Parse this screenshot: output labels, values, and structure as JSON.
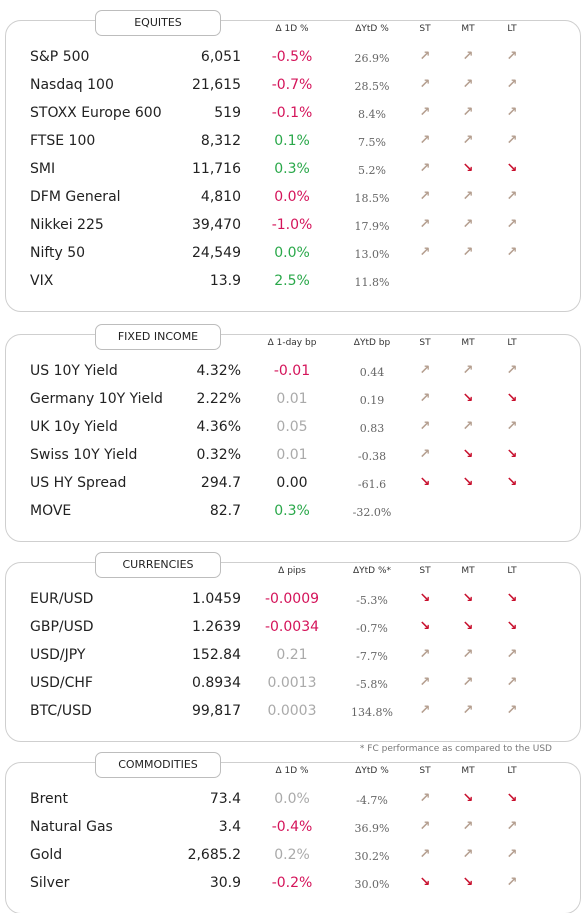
{
  "note": "* FC performance as compared to the USD",
  "sections": [
    {
      "title": "EQUITES",
      "headers": [
        "Δ 1D %",
        "ΔYtD %",
        "ST",
        "MT",
        "LT"
      ],
      "rows": [
        {
          "name": "S&P 500",
          "value": "6,051",
          "change": "-0.5%",
          "change_color": "#d4145a",
          "ytd": "26.9%",
          "st": "↗",
          "mt": "↗",
          "lt": "↗"
        },
        {
          "name": "Nasdaq 100",
          "value": "21,615",
          "change": "-0.7%",
          "change_color": "#d4145a",
          "ytd": "28.5%",
          "st": "↗",
          "mt": "↗",
          "lt": "↗"
        },
        {
          "name": "STOXX Europe 600",
          "value": "519",
          "change": "-0.1%",
          "change_color": "#d4145a",
          "ytd": "8.4%",
          "st": "↗",
          "mt": "↗",
          "lt": "↗"
        },
        {
          "name": "FTSE 100",
          "value": "8,312",
          "change": "0.1%",
          "change_color": "#2aa84a",
          "ytd": "7.5%",
          "st": "↗",
          "mt": "↗",
          "lt": "↗"
        },
        {
          "name": "SMI",
          "value": "11,716",
          "change": "0.3%",
          "change_color": "#2aa84a",
          "ytd": "5.2%",
          "st": "↗",
          "mt": "↘",
          "lt": "↘"
        },
        {
          "name": "DFM General",
          "value": "4,810",
          "change": "0.0%",
          "change_color": "#d4145a",
          "ytd": "18.5%",
          "st": "↗",
          "mt": "↗",
          "lt": "↗"
        },
        {
          "name": "Nikkei 225",
          "value": "39,470",
          "change": "-1.0%",
          "change_color": "#d4145a",
          "ytd": "17.9%",
          "st": "↗",
          "mt": "↗",
          "lt": "↗"
        },
        {
          "name": "Nifty  50",
          "value": "24,549",
          "change": "0.0%",
          "change_color": "#2aa84a",
          "ytd": "13.0%",
          "st": "↗",
          "mt": "↗",
          "lt": "↗"
        },
        {
          "name": "VIX",
          "value": "13.9",
          "change": "2.5%",
          "change_color": "#2aa84a",
          "ytd": "11.8%"
        }
      ]
    },
    {
      "title": "FIXED INCOME",
      "headers": [
        "Δ 1-day bp",
        "ΔYtD bp",
        "ST",
        "MT",
        "LT"
      ],
      "rows": [
        {
          "name": "US 10Y Yield",
          "value": "4.32%",
          "change": "-0.01",
          "change_color": "#d4145a",
          "ytd": "0.44",
          "st": "↗",
          "mt": "↗",
          "lt": "↗"
        },
        {
          "name": "Germany 10Y Yield",
          "value": "2.22%",
          "change": "0.01",
          "change_color": "#aaaaaa",
          "ytd": "0.19",
          "st": "↗",
          "mt": "↘",
          "lt": "↘"
        },
        {
          "name": "UK 10y Yield",
          "value": "4.36%",
          "change": "0.05",
          "change_color": "#aaaaaa",
          "ytd": "0.83",
          "st": "↗",
          "mt": "↗",
          "lt": "↗"
        },
        {
          "name": "Swiss 10Y Yield",
          "value": "0.32%",
          "change": "0.01",
          "change_color": "#aaaaaa",
          "ytd": "-0.38",
          "st": "↗",
          "mt": "↘",
          "lt": "↘"
        },
        {
          "name": "US HY Spread",
          "value": "294.7",
          "change": "0.00",
          "change_color": "#222222",
          "ytd": "-61.6",
          "st": "↘",
          "mt": "↘",
          "lt": "↘"
        },
        {
          "name": "MOVE",
          "value": "82.7",
          "change": "0.3%",
          "change_color": "#2aa84a",
          "ytd": "-32.0%"
        }
      ]
    },
    {
      "title": "CURRENCIES",
      "headers": [
        "Δ pips",
        "ΔYtD %*",
        "ST",
        "MT",
        "LT"
      ],
      "rows": [
        {
          "name": "EUR/USD",
          "value": "1.0459",
          "change": "-0.0009",
          "change_color": "#d4145a",
          "ytd": "-5.3%",
          "st": "↘",
          "mt": "↘",
          "lt": "↘"
        },
        {
          "name": "GBP/USD",
          "value": "1.2639",
          "change": "-0.0034",
          "change_color": "#d4145a",
          "ytd": "-0.7%",
          "st": "↘",
          "mt": "↘",
          "lt": "↘"
        },
        {
          "name": "USD/JPY",
          "value": "152.84",
          "change": "0.21",
          "change_color": "#aaaaaa",
          "ytd": "-7.7%",
          "st": "↗",
          "mt": "↗",
          "lt": "↗"
        },
        {
          "name": "USD/CHF",
          "value": "0.8934",
          "change": "0.0013",
          "change_color": "#aaaaaa",
          "ytd": "-5.8%",
          "st": "↗",
          "mt": "↗",
          "lt": "↗"
        },
        {
          "name": "BTC/USD",
          "value": "99,817",
          "change": "0.0003",
          "change_color": "#aaaaaa",
          "ytd": "134.8%",
          "st": "↗",
          "mt": "↗",
          "lt": "↗"
        }
      ]
    },
    {
      "title": "COMMODITIES",
      "headers": [
        "Δ 1D %",
        "ΔYtD %",
        "ST",
        "MT",
        "LT"
      ],
      "rows": [
        {
          "name": "Brent",
          "value": "73.4",
          "change": "0.0%",
          "change_color": "#aaaaaa",
          "ytd": "-4.7%",
          "st": "↗",
          "mt": "↘",
          "lt": "↘"
        },
        {
          "name": "Natural Gas",
          "value": "3.4",
          "change": "-0.4%",
          "change_color": "#d4145a",
          "ytd": "36.9%",
          "st": "↗",
          "mt": "↗",
          "lt": "↗"
        },
        {
          "name": "Gold",
          "value": "2,685.2",
          "change": "0.2%",
          "change_color": "#aaaaaa",
          "ytd": "30.2%",
          "st": "↗",
          "mt": "↗",
          "lt": "↗"
        },
        {
          "name": "Silver",
          "value": "30.9",
          "change": "-0.2%",
          "change_color": "#d4145a",
          "ytd": "30.0%",
          "st": "↘",
          "mt": "↘",
          "lt": "↗"
        }
      ]
    }
  ]
}
